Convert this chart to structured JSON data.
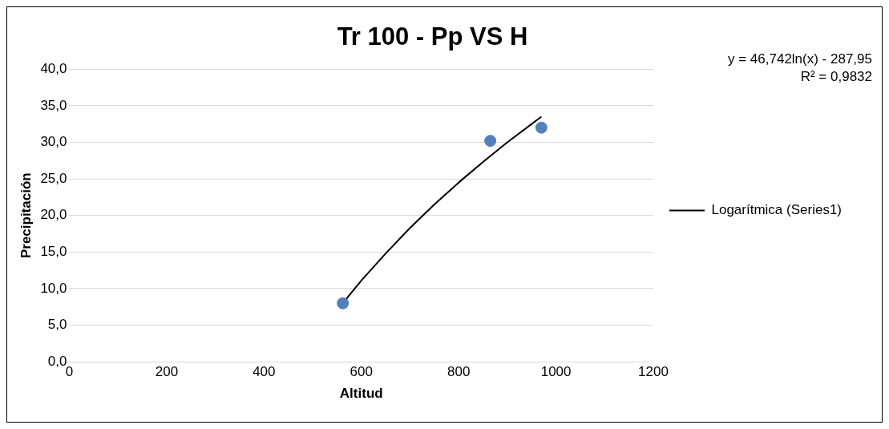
{
  "chart_data": {
    "type": "scatter",
    "title": "Tr 100 - Pp VS H",
    "xlabel": "Altitud",
    "ylabel": "Precipitación",
    "series": [
      {
        "color": "#4f81bd",
        "x": [
          562,
          865,
          970
        ],
        "values": [
          8.0,
          30.2,
          32.0
        ]
      },
      {
        "type": "line",
        "marker": "none",
        "name": "Logarítmica (Series1)",
        "color": "#000000",
        "x": [
          562,
          600,
          650,
          700,
          750,
          800,
          850,
          900,
          950,
          970
        ],
        "values": [
          8.0,
          11.1,
          14.8,
          18.3,
          21.5,
          24.5,
          27.3,
          30.0,
          32.5,
          33.5
        ]
      }
    ],
    "xlim": [
      0,
      1200
    ],
    "xticks": [
      0,
      200,
      400,
      600,
      800,
      1000,
      1200
    ],
    "ylim": [
      0,
      40
    ],
    "yticks": [
      {
        "value": 0,
        "label": "0,0"
      },
      {
        "value": 5,
        "label": "5,0"
      },
      {
        "value": 10,
        "label": "10,0"
      },
      {
        "value": 15,
        "label": "15,0"
      },
      {
        "value": 20,
        "label": "20,0"
      },
      {
        "value": 25,
        "label": "25,0"
      },
      {
        "value": 30,
        "label": "30,0"
      },
      {
        "value": 35,
        "label": "35,0"
      },
      {
        "value": 40,
        "label": "40,0"
      }
    ],
    "grid": "y",
    "legend": "right",
    "marker": "circle",
    "annotations": [
      "y = 46,742ln(x) - 287,95",
      "R² = 0,9832"
    ]
  }
}
